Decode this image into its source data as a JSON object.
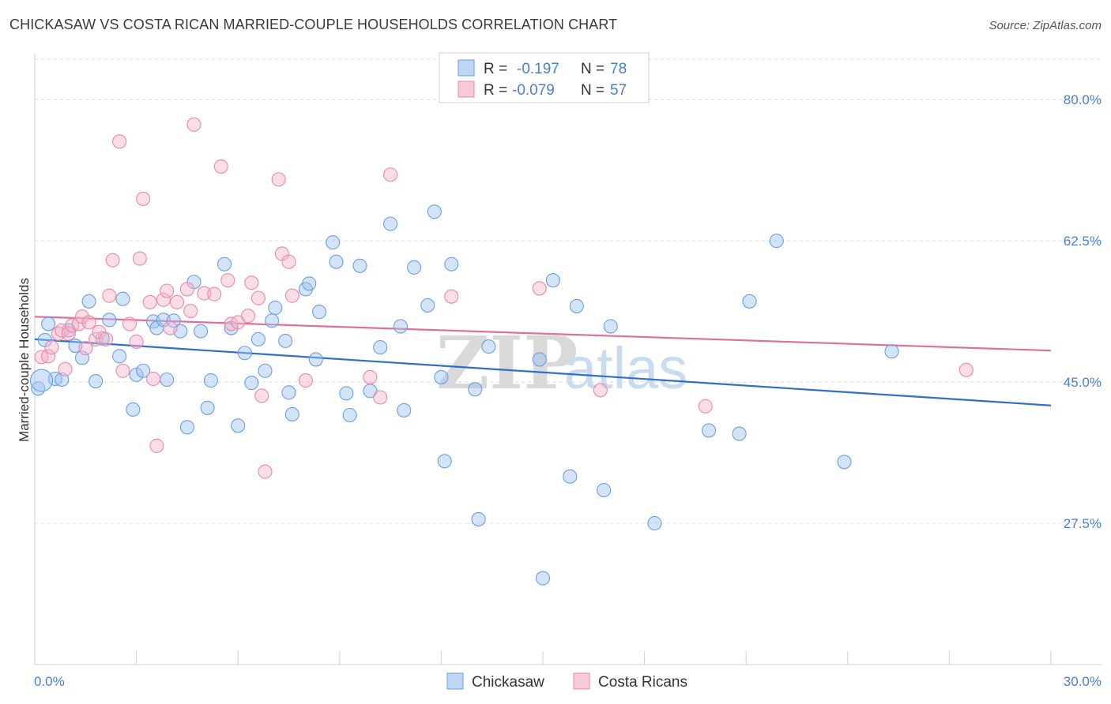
{
  "title": "CHICKASAW VS COSTA RICAN MARRIED-COUPLE HOUSEHOLDS CORRELATION CHART",
  "source": "Source: ZipAtlas.com",
  "watermark": {
    "zip": "ZIP",
    "atlas": "atlas"
  },
  "legend_top": {
    "rows": [
      {
        "r_label": "R =",
        "r_value": "-0.197",
        "n_label": "N =",
        "n_value": "78",
        "color": "#6a9ee0"
      },
      {
        "r_label": "R =",
        "r_value": "-0.079",
        "n_label": "N =",
        "n_value": "57",
        "color": "#e88aa8"
      }
    ]
  },
  "legend_bottom": {
    "items": [
      "Chickasaw",
      "Costa Ricans"
    ]
  },
  "chart_data": {
    "type": "scatter",
    "title": "CHICKASAW VS COSTA RICAN MARRIED-COUPLE HOUSEHOLDS CORRELATION CHART",
    "xlabel": "",
    "ylabel": "Married-couple Households",
    "xlim": [
      0,
      30
    ],
    "ylim": [
      10,
      85
    ],
    "x_tick_labels": [
      "0.0%",
      "30.0%"
    ],
    "y_ticks": [
      27.5,
      45.0,
      62.5,
      80.0
    ],
    "y_tick_labels": [
      "27.5%",
      "45.0%",
      "62.5%",
      "80.0%"
    ],
    "grid": true,
    "legend": "top-center",
    "series": [
      {
        "name": "Chickasaw",
        "color": "#6a9ee0",
        "fill": "rgba(160,196,240,0.45)",
        "r": -0.197,
        "n": 78,
        "trend": {
          "x": [
            0,
            30
          ],
          "y": [
            50.3,
            42.1
          ]
        },
        "points": [
          [
            0.1,
            44.2
          ],
          [
            0.3,
            50.2
          ],
          [
            0.4,
            52.2
          ],
          [
            0.6,
            45.4
          ],
          [
            0.8,
            45.3
          ],
          [
            1.0,
            51.4
          ],
          [
            1.2,
            49.5
          ],
          [
            1.4,
            48.0
          ],
          [
            1.6,
            55.0
          ],
          [
            1.8,
            45.1
          ],
          [
            2.0,
            50.4
          ],
          [
            2.2,
            52.7
          ],
          [
            2.5,
            48.2
          ],
          [
            2.6,
            55.3
          ],
          [
            2.9,
            41.6
          ],
          [
            3.0,
            45.9
          ],
          [
            3.2,
            46.4
          ],
          [
            3.5,
            52.5
          ],
          [
            3.6,
            51.7
          ],
          [
            3.8,
            52.7
          ],
          [
            3.9,
            45.3
          ],
          [
            4.1,
            52.6
          ],
          [
            4.3,
            51.3
          ],
          [
            4.5,
            39.4
          ],
          [
            4.7,
            57.4
          ],
          [
            4.9,
            51.3
          ],
          [
            5.1,
            41.8
          ],
          [
            5.2,
            45.2
          ],
          [
            5.6,
            59.6
          ],
          [
            5.8,
            51.7
          ],
          [
            6.0,
            39.6
          ],
          [
            6.2,
            48.6
          ],
          [
            6.4,
            44.9
          ],
          [
            6.6,
            50.3
          ],
          [
            6.8,
            46.4
          ],
          [
            7.0,
            52.6
          ],
          [
            7.1,
            54.2
          ],
          [
            7.4,
            50.1
          ],
          [
            7.5,
            43.7
          ],
          [
            7.6,
            41.0
          ],
          [
            8.0,
            56.5
          ],
          [
            8.1,
            57.2
          ],
          [
            8.3,
            47.8
          ],
          [
            8.4,
            53.7
          ],
          [
            8.8,
            62.3
          ],
          [
            8.9,
            59.9
          ],
          [
            9.2,
            43.6
          ],
          [
            9.3,
            40.9
          ],
          [
            9.6,
            59.4
          ],
          [
            9.9,
            43.9
          ],
          [
            10.2,
            49.3
          ],
          [
            10.5,
            64.6
          ],
          [
            10.8,
            51.9
          ],
          [
            10.9,
            41.5
          ],
          [
            11.2,
            59.2
          ],
          [
            11.6,
            54.5
          ],
          [
            11.8,
            66.1
          ],
          [
            12.0,
            45.6
          ],
          [
            12.1,
            35.2
          ],
          [
            12.3,
            59.6
          ],
          [
            13.0,
            44.1
          ],
          [
            13.1,
            28.0
          ],
          [
            13.4,
            49.4
          ],
          [
            14.9,
            47.8
          ],
          [
            15.0,
            20.7
          ],
          [
            15.3,
            57.6
          ],
          [
            15.8,
            33.3
          ],
          [
            16.0,
            54.4
          ],
          [
            16.8,
            31.6
          ],
          [
            17.0,
            51.9
          ],
          [
            18.3,
            27.5
          ],
          [
            19.9,
            39.0
          ],
          [
            20.8,
            38.6
          ],
          [
            21.1,
            55.0
          ],
          [
            21.9,
            62.5
          ],
          [
            23.9,
            35.1
          ],
          [
            25.3,
            48.8
          ],
          [
            0.2,
            45.2
          ]
        ]
      },
      {
        "name": "Costa Ricans",
        "color": "#e88aa8",
        "fill": "rgba(245,180,200,0.45)",
        "r": -0.079,
        "n": 57,
        "trend": {
          "x": [
            0,
            30
          ],
          "y": [
            53.1,
            48.9
          ]
        },
        "points": [
          [
            0.2,
            48.1
          ],
          [
            0.4,
            48.2
          ],
          [
            0.5,
            49.3
          ],
          [
            0.7,
            51.0
          ],
          [
            0.8,
            51.4
          ],
          [
            0.9,
            46.6
          ],
          [
            1.0,
            51.0
          ],
          [
            1.1,
            52.0
          ],
          [
            1.3,
            52.2
          ],
          [
            1.4,
            53.1
          ],
          [
            1.5,
            49.2
          ],
          [
            1.6,
            52.4
          ],
          [
            1.8,
            50.3
          ],
          [
            1.9,
            51.2
          ],
          [
            2.1,
            50.3
          ],
          [
            2.2,
            55.7
          ],
          [
            2.3,
            60.1
          ],
          [
            2.5,
            74.8
          ],
          [
            2.6,
            46.4
          ],
          [
            2.8,
            52.2
          ],
          [
            3.0,
            50.0
          ],
          [
            3.1,
            60.3
          ],
          [
            3.2,
            67.7
          ],
          [
            3.4,
            54.9
          ],
          [
            3.5,
            45.4
          ],
          [
            3.6,
            37.1
          ],
          [
            3.8,
            55.2
          ],
          [
            3.9,
            56.3
          ],
          [
            4.0,
            51.7
          ],
          [
            4.2,
            54.9
          ],
          [
            4.5,
            56.5
          ],
          [
            4.6,
            53.8
          ],
          [
            4.7,
            76.9
          ],
          [
            5.0,
            56.0
          ],
          [
            5.3,
            55.9
          ],
          [
            5.5,
            71.7
          ],
          [
            5.7,
            57.6
          ],
          [
            5.8,
            52.2
          ],
          [
            6.0,
            52.4
          ],
          [
            6.3,
            53.2
          ],
          [
            6.4,
            57.3
          ],
          [
            6.6,
            55.4
          ],
          [
            6.7,
            43.3
          ],
          [
            6.8,
            33.9
          ],
          [
            7.2,
            70.1
          ],
          [
            7.3,
            60.9
          ],
          [
            7.5,
            59.9
          ],
          [
            7.6,
            55.7
          ],
          [
            8.0,
            45.2
          ],
          [
            9.9,
            45.6
          ],
          [
            10.2,
            43.1
          ],
          [
            10.5,
            70.7
          ],
          [
            12.3,
            55.6
          ],
          [
            14.9,
            56.6
          ],
          [
            16.7,
            44.0
          ],
          [
            19.8,
            42.0
          ],
          [
            27.5,
            46.5
          ]
        ]
      }
    ]
  }
}
